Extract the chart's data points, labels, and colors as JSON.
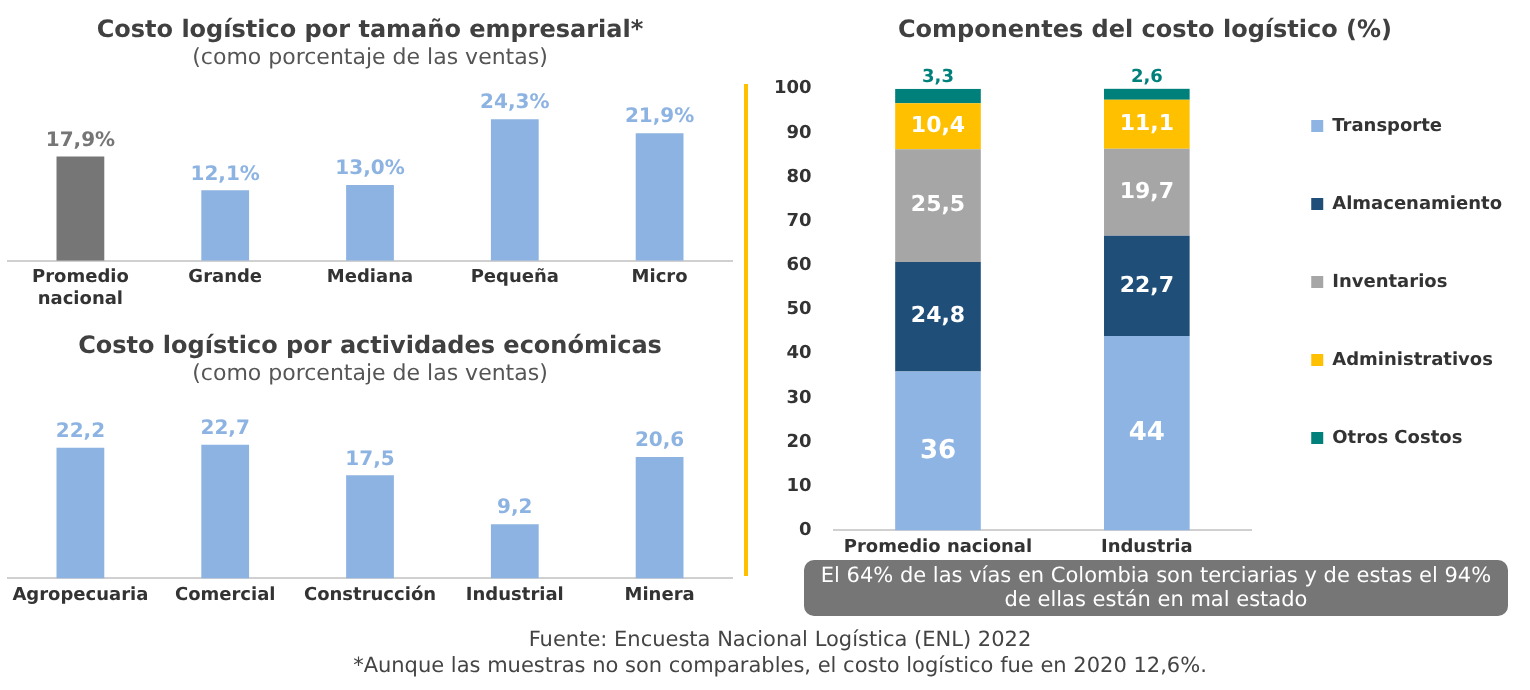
{
  "chart_data": [
    {
      "type": "bar",
      "title": "Costo logístico por tamaño empresarial*",
      "subtitle": "(como porcentaje de las ventas)",
      "categories": [
        "Promedio nacional",
        "Grande",
        "Mediana",
        "Pequeña",
        "Micro"
      ],
      "values": [
        17.9,
        12.1,
        13.0,
        24.3,
        21.9
      ],
      "colors": [
        "#767676",
        "#8db3e2",
        "#8db3e2",
        "#8db3e2",
        "#8db3e2"
      ],
      "value_labels": [
        "17,9%",
        "12,1%",
        "13,0%",
        "24,3%",
        "21,9%"
      ],
      "grid": false,
      "tick_labels": "x"
    },
    {
      "type": "bar",
      "title": "Costo logístico por actividades económicas",
      "subtitle": "(como porcentaje de las ventas)",
      "categories": [
        "Agropecuaria",
        "Comercial",
        "Construcción",
        "Industrial",
        "Minera"
      ],
      "values": [
        22.2,
        22.7,
        17.5,
        9.2,
        20.6
      ],
      "color": "#8db3e2",
      "value_labels": [
        "22,2",
        "22,7",
        "17,5",
        "9,2",
        "20,6"
      ],
      "grid": false,
      "tick_labels": "x"
    },
    {
      "type": "bar",
      "stacked": true,
      "title": "Componentes del costo logístico (%)",
      "categories": [
        "Promedio nacional",
        "Industria"
      ],
      "ylim": [
        0,
        100
      ],
      "yticks": [
        0,
        10,
        20,
        30,
        40,
        50,
        60,
        70,
        80,
        90,
        100
      ],
      "grid": false,
      "legend": "right",
      "series": [
        {
          "name": "Transporte",
          "color": "#8eb4e3",
          "values": [
            36,
            44
          ],
          "value_labels": [
            "36",
            "44"
          ]
        },
        {
          "name": "Almacenamiento",
          "color": "#1f4e79",
          "values": [
            24.8,
            22.7
          ],
          "value_labels": [
            "24,8",
            "22,7"
          ]
        },
        {
          "name": "Inventarios",
          "color": "#a6a6a6",
          "values": [
            25.5,
            19.7
          ],
          "value_labels": [
            "25,5",
            "19,7"
          ]
        },
        {
          "name": "Administrativos",
          "color": "#ffc000",
          "values": [
            10.4,
            11.1
          ],
          "value_labels": [
            "10,4",
            "11,1"
          ]
        },
        {
          "name": "Otros Costos",
          "color": "#00807a",
          "values": [
            3.3,
            2.6
          ],
          "value_labels": [
            "3,3",
            "2,6"
          ]
        }
      ],
      "annotations": [
        "El 64% de las vías en Colombia son terciarias y de estas el 94% de ellas están en mal estado",
        "Fuente: Encuesta Nacional Logística (ENL) 2022",
        "*Aunque las muestras no son comparables, el costo logístico fue en 2020 12,6%."
      ]
    }
  ]
}
